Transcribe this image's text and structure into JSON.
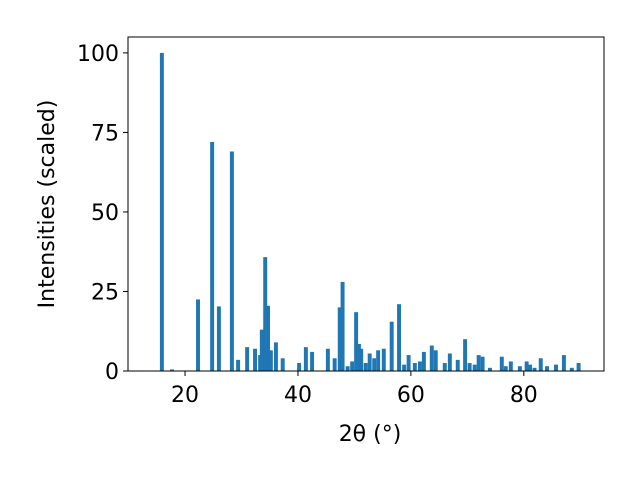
{
  "chart_data": {
    "type": "bar",
    "xlabel": "2θ (°)",
    "ylabel": "Intensities (scaled)",
    "color": "#1f77b4",
    "x": [
      15.9,
      17.7,
      22.3,
      24.8,
      26.0,
      28.3,
      29.4,
      31.0,
      32.4,
      33.3,
      33.6,
      34.2,
      34.7,
      35.2,
      36.1,
      37.3,
      40.2,
      41.4,
      42.5,
      45.3,
      46.5,
      47.4,
      47.9,
      48.8,
      49.6,
      50.3,
      50.8,
      51.2,
      52.0,
      52.7,
      53.5,
      54.2,
      55.2,
      56.6,
      57.9,
      58.8,
      59.6,
      60.7,
      61.6,
      62.3,
      63.7,
      64.4,
      66.0,
      66.9,
      68.3,
      69.6,
      70.4,
      71.3,
      72.0,
      72.7,
      74.0,
      76.1,
      76.8,
      77.7,
      79.3,
      80.5,
      81.1,
      81.9,
      83.0,
      84.1,
      85.7,
      87.1,
      88.5,
      89.7
    ],
    "values": [
      100,
      0.5,
      22.5,
      72,
      20.3,
      69,
      3.5,
      7.5,
      7,
      5,
      13,
      35.8,
      20.5,
      6.5,
      9,
      4,
      2.5,
      7.5,
      6,
      7,
      4,
      20,
      28,
      1.5,
      3,
      18.5,
      8.5,
      7,
      2.5,
      5.5,
      4,
      6.5,
      7,
      15.5,
      21,
      2,
      5,
      2.5,
      3,
      6,
      8,
      6.5,
      2.5,
      5.5,
      3.5,
      10,
      2.5,
      2,
      5,
      4.5,
      1,
      4.5,
      1.5,
      3,
      1.5,
      3,
      2,
      1,
      4,
      1.5,
      2,
      5,
      1,
      2.5
    ],
    "xlim": [
      9.9,
      94.2
    ],
    "xticks": [
      20,
      40,
      60,
      80
    ],
    "ylim": [
      0,
      105
    ],
    "yticks": [
      0,
      25,
      50,
      75,
      100
    ]
  }
}
